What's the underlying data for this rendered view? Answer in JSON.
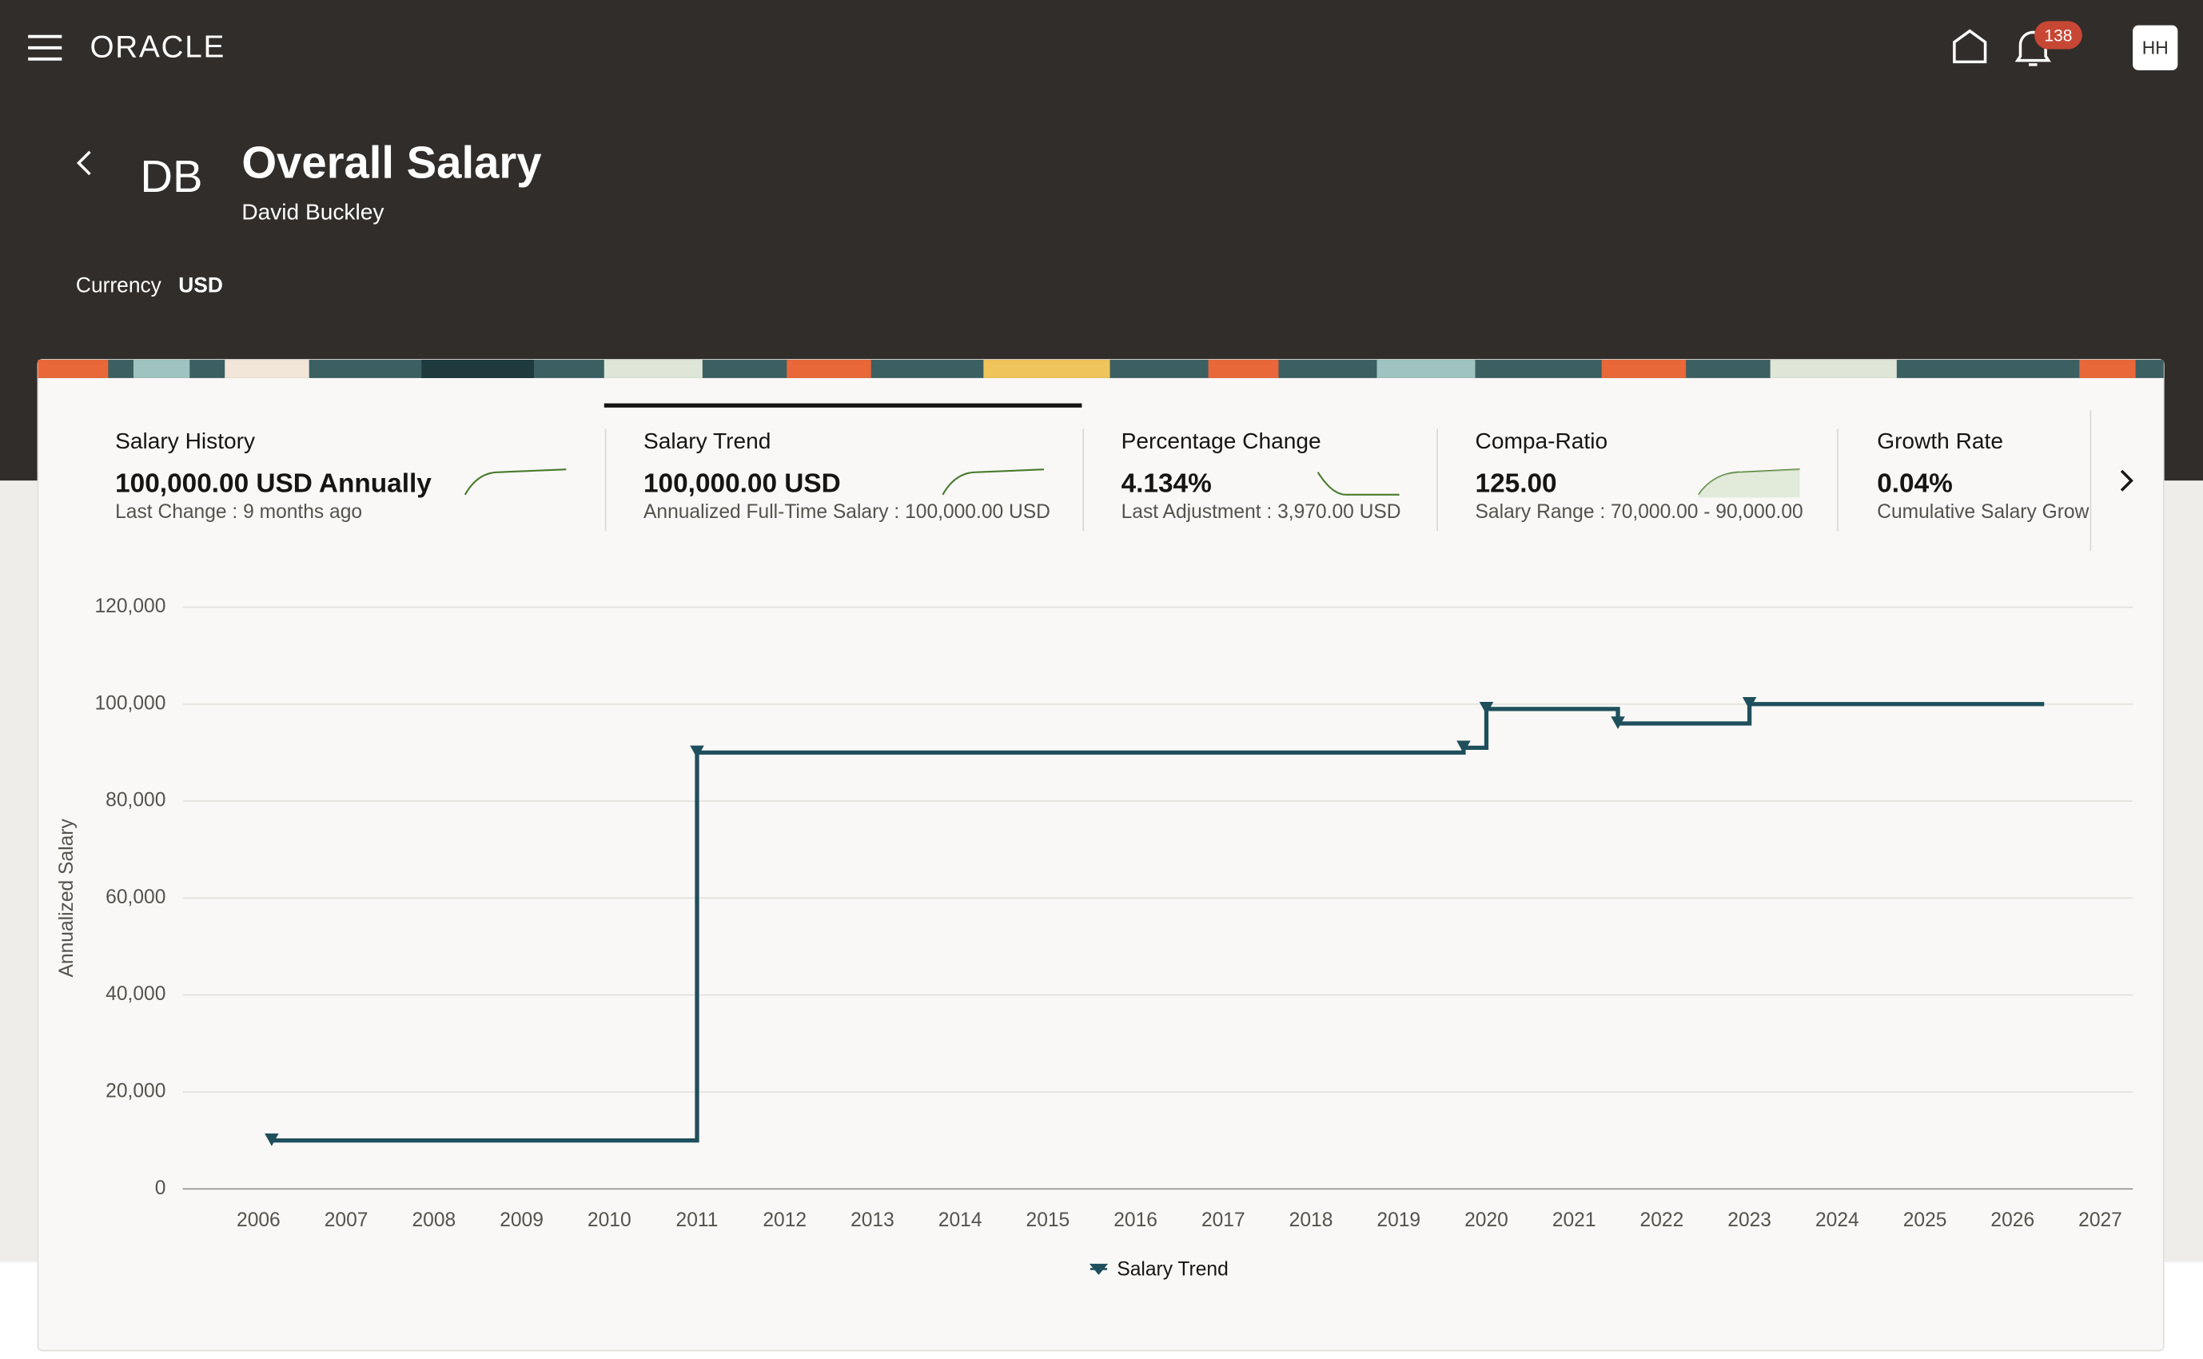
{
  "header": {
    "brand": "ORACLE",
    "notifications": "138",
    "user": "HH"
  },
  "page": {
    "initials": "DB",
    "title": "Overall Salary",
    "subtitle": "David Buckley",
    "currency_label": "Currency",
    "currency": "USD"
  },
  "tabs": [
    {
      "title": "Salary History",
      "value": "100,000.00 USD Annually",
      "detail": "Last Change : 9 months ago"
    },
    {
      "title": "Salary Trend",
      "value": "100,000.00 USD",
      "detail": "Annualized Full-Time Salary : 100,000.00 USD"
    },
    {
      "title": "Percentage Change",
      "value": "4.134%",
      "detail": "Last Adjustment : 3,970.00 USD"
    },
    {
      "title": "Compa-Ratio",
      "value": "125.00",
      "detail": "Salary Range : 70,000.00 - 90,000.00"
    },
    {
      "title": "Growth Rate",
      "value": "0.04%",
      "detail": "Cumulative Salary Grow"
    }
  ],
  "chart_data": {
    "type": "line",
    "step": true,
    "y_label": "Annualized Salary",
    "x": [
      2006.15,
      2011.0,
      2019.74,
      2020.0,
      2021.5,
      2023.0,
      2026.36
    ],
    "series": [
      {
        "name": "Salary Trend",
        "color": "#1f4f5c",
        "values": [
          10000,
          90000,
          91000,
          99000,
          96000,
          100000,
          100000
        ]
      }
    ],
    "xlim": [
      2005.135,
      2027.37
    ],
    "xticks": [
      2006,
      2007,
      2008,
      2009,
      2010,
      2011,
      2012,
      2013,
      2014,
      2015,
      2016,
      2017,
      2018,
      2019,
      2020,
      2021,
      2022,
      2023,
      2024,
      2025,
      2026,
      2027
    ],
    "ylim": [
      0,
      120000
    ],
    "yticks": [
      0,
      {
        "value": 20000,
        "label": "20,000"
      },
      {
        "value": 40000,
        "label": "40,000"
      },
      {
        "value": 60000,
        "label": "60,000"
      },
      {
        "value": 80000,
        "label": "80,000"
      },
      {
        "value": 100000,
        "label": "100,000"
      },
      {
        "value": 120000,
        "label": "120,000"
      }
    ],
    "grid": true
  }
}
